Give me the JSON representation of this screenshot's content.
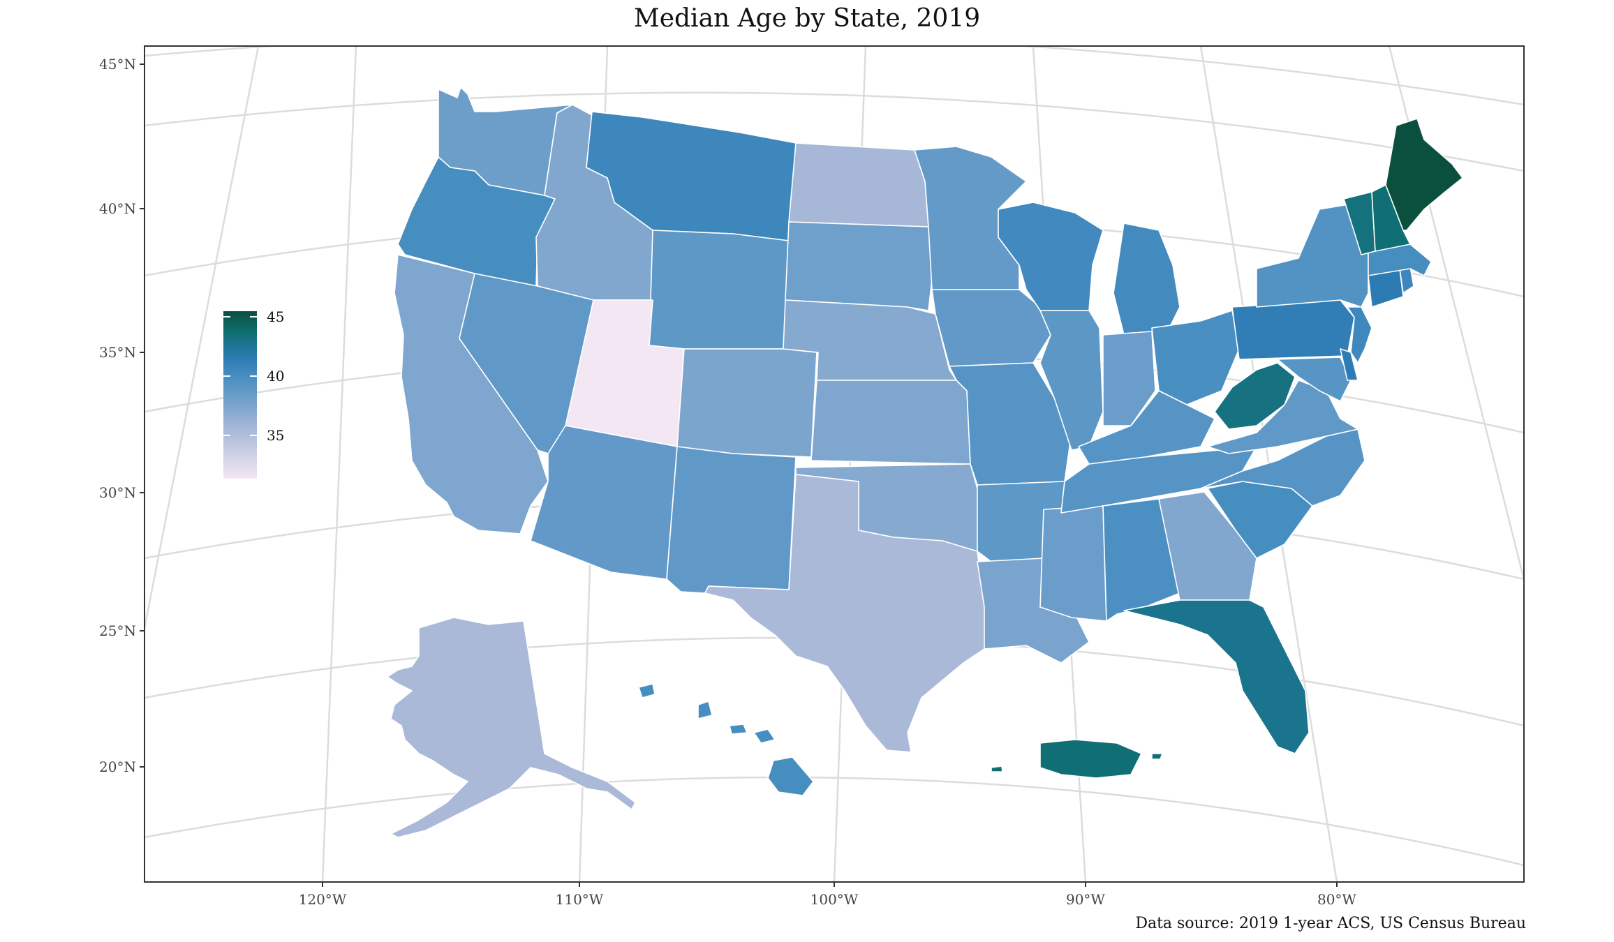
{
  "title": "Median Age by State, 2019",
  "caption": "Data source: 2019 1-year ACS, US Census Bureau",
  "lat_labels": [
    "45°N",
    "40°N",
    "35°N",
    "30°N",
    "25°N",
    "20°N"
  ],
  "lon_labels": [
    "120°W",
    "110°W",
    "100°W",
    "90°W",
    "80°W"
  ],
  "legend": {
    "ticks": [
      "45",
      "40",
      "35"
    ],
    "min": 31,
    "max": 45,
    "colors": [
      "#f3e7f3",
      "#a6b7d7",
      "#4a8fc2",
      "#2c7bb4",
      "#0d6e6e",
      "#0b4f3f"
    ]
  },
  "colors": {
    "background": "#ffffff",
    "graticule": "#dcdcdc",
    "border": "#333333",
    "state_stroke": "#ffffff"
  },
  "states": [
    {
      "id": "WA",
      "median_age": 37.8
    },
    {
      "id": "OR",
      "median_age": 39.6
    },
    {
      "id": "CA",
      "median_age": 37.0
    },
    {
      "id": "ID",
      "median_age": 36.9
    },
    {
      "id": "NV",
      "median_age": 38.4
    },
    {
      "id": "MT",
      "median_age": 40.1
    },
    {
      "id": "WY",
      "median_age": 38.5
    },
    {
      "id": "UT",
      "median_age": 31.0
    },
    {
      "id": "AZ",
      "median_age": 38.3
    },
    {
      "id": "CO",
      "median_age": 37.1
    },
    {
      "id": "NM",
      "median_age": 38.4
    },
    {
      "id": "ND",
      "median_age": 35.2
    },
    {
      "id": "SD",
      "median_age": 37.7
    },
    {
      "id": "NE",
      "median_age": 36.7
    },
    {
      "id": "KS",
      "median_age": 37.0
    },
    {
      "id": "OK",
      "median_age": 36.7
    },
    {
      "id": "TX",
      "median_age": 35.0
    },
    {
      "id": "MN",
      "median_age": 38.2
    },
    {
      "id": "IA",
      "median_age": 38.3
    },
    {
      "id": "MO",
      "median_age": 38.9
    },
    {
      "id": "AR",
      "median_age": 38.5
    },
    {
      "id": "LA",
      "median_age": 37.2
    },
    {
      "id": "WI",
      "median_age": 39.9
    },
    {
      "id": "IL",
      "median_age": 38.6
    },
    {
      "id": "MS",
      "median_age": 37.9
    },
    {
      "id": "MI",
      "median_age": 39.8
    },
    {
      "id": "IN",
      "median_age": 37.9
    },
    {
      "id": "OH",
      "median_age": 39.4
    },
    {
      "id": "KY",
      "median_age": 38.9
    },
    {
      "id": "TN",
      "median_age": 38.9
    },
    {
      "id": "AL",
      "median_age": 39.3
    },
    {
      "id": "GA",
      "median_age": 36.9
    },
    {
      "id": "FL",
      "median_age": 42.3
    },
    {
      "id": "SC",
      "median_age": 39.6
    },
    {
      "id": "NC",
      "median_age": 38.9
    },
    {
      "id": "VA",
      "median_age": 38.4
    },
    {
      "id": "WV",
      "median_age": 42.7
    },
    {
      "id": "PA",
      "median_age": 40.8
    },
    {
      "id": "NY",
      "median_age": 39.0
    },
    {
      "id": "MD",
      "median_age": 38.8
    },
    {
      "id": "DE",
      "median_age": 41.0
    },
    {
      "id": "NJ",
      "median_age": 40.0
    },
    {
      "id": "CT",
      "median_age": 41.1
    },
    {
      "id": "RI",
      "median_age": 40.1
    },
    {
      "id": "MA",
      "median_age": 39.6
    },
    {
      "id": "VT",
      "median_age": 42.8
    },
    {
      "id": "NH",
      "median_age": 43.1
    },
    {
      "id": "ME",
      "median_age": 45.1
    },
    {
      "id": "AK",
      "median_age": 35.0
    },
    {
      "id": "HI",
      "median_age": 39.6
    },
    {
      "id": "PR",
      "median_age": 43.1
    }
  ]
}
